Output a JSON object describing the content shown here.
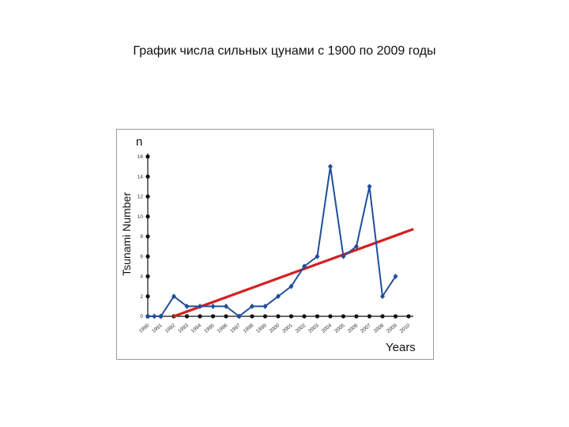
{
  "slide": {
    "title": "График числа сильных цунами с 1900 по 2009 годы"
  },
  "chart_data": {
    "type": "line",
    "title": "",
    "xlabel": "Years",
    "ylabel": "Tsunami Number",
    "y_axis_symbol": "n",
    "ylim": [
      0,
      16
    ],
    "y_ticks": [
      0,
      2,
      4,
      6,
      8,
      10,
      12,
      14,
      16
    ],
    "x_tick_labels": [
      "1990",
      "1991",
      "1992",
      "1993",
      "1994",
      "1995",
      "1996",
      "1997",
      "1998",
      "1999",
      "2000",
      "2001",
      "2002",
      "2003",
      "2004",
      "2005",
      "2006",
      "2007",
      "2008",
      "2009",
      "2010"
    ],
    "x_tick_labels_shown": [
      "1990",
      "1991",
      "1992",
      "1993",
      "1994",
      "1995",
      "1996",
      "1997",
      "1998",
      "1999",
      "2000",
      "2001",
      "2002",
      "2003",
      "2004",
      "2005",
      "2006",
      "2007",
      "2008",
      "2009",
      "2010"
    ],
    "series": [
      {
        "name": "",
        "color": "#1f4e9c",
        "x": [
          1990,
          1990.5,
          1991,
          1992,
          1993,
          1994,
          1995,
          1996,
          1997,
          1998,
          1999,
          2000,
          2001,
          2002,
          2003,
          2004,
          2005,
          2006,
          2007,
          2008,
          2009
        ],
        "values": [
          0,
          0,
          0,
          2,
          1,
          1,
          1,
          1,
          0,
          1,
          1,
          2,
          3,
          5,
          6,
          15,
          6,
          7,
          13,
          2,
          4
        ]
      }
    ],
    "trend": {
      "color": "#d42020",
      "start": [
        1992,
        0
      ],
      "end": [
        2010.3,
        8.7
      ]
    },
    "baseline_dots": [
      1990,
      1991,
      1992,
      1993,
      1994,
      1995,
      1996,
      1997,
      1998,
      1999,
      2000,
      2001,
      2002,
      2003,
      2004,
      2005,
      2006,
      2007,
      2008,
      2009,
      2010
    ],
    "grid": false,
    "legend": "none"
  }
}
